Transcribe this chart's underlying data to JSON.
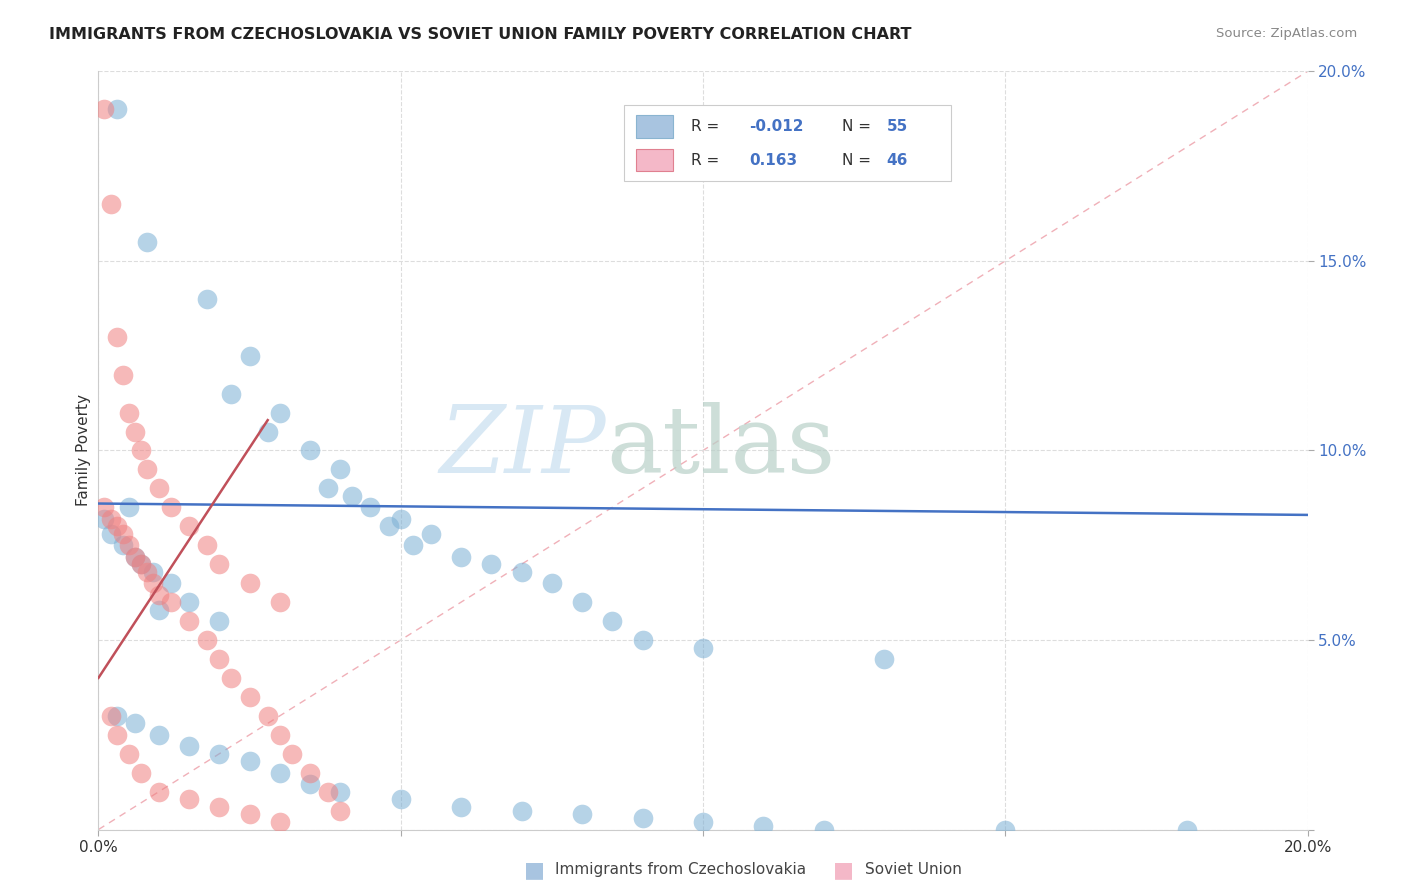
{
  "title": "IMMIGRANTS FROM CZECHOSLOVAKIA VS SOVIET UNION FAMILY POVERTY CORRELATION CHART",
  "source": "Source: ZipAtlas.com",
  "ylabel": "Family Poverty",
  "xlim": [
    0.0,
    0.2
  ],
  "ylim": [
    0.0,
    0.2
  ],
  "R_czechoslovakia": -0.012,
  "N_czechoslovakia": 55,
  "R_soviet": 0.163,
  "N_soviet": 46,
  "color_czechoslovakia": "#7bafd4",
  "color_soviet": "#f08080",
  "color_line_czechoslovakia": "#4472c4",
  "color_line_soviet": "#c0505a",
  "color_diagonal": "#f0b0b8",
  "watermark_zip": "ZIP",
  "watermark_atlas": "atlas",
  "legend_czech_color": "#a8c4e0",
  "legend_soviet_color": "#f4b8c8",
  "czech_x": [
    0.005,
    0.018,
    0.003,
    0.008,
    0.001,
    0.002,
    0.004,
    0.006,
    0.007,
    0.009,
    0.012,
    0.015,
    0.01,
    0.02,
    0.025,
    0.022,
    0.03,
    0.028,
    0.035,
    0.04,
    0.038,
    0.042,
    0.045,
    0.05,
    0.048,
    0.055,
    0.052,
    0.06,
    0.065,
    0.07,
    0.075,
    0.08,
    0.085,
    0.09,
    0.1,
    0.13,
    0.003,
    0.006,
    0.01,
    0.015,
    0.02,
    0.025,
    0.03,
    0.035,
    0.04,
    0.05,
    0.06,
    0.07,
    0.08,
    0.09,
    0.1,
    0.11,
    0.12,
    0.15,
    0.18
  ],
  "czech_y": [
    0.085,
    0.14,
    0.19,
    0.155,
    0.082,
    0.078,
    0.075,
    0.072,
    0.07,
    0.068,
    0.065,
    0.06,
    0.058,
    0.055,
    0.125,
    0.115,
    0.11,
    0.105,
    0.1,
    0.095,
    0.09,
    0.088,
    0.085,
    0.082,
    0.08,
    0.078,
    0.075,
    0.072,
    0.07,
    0.068,
    0.065,
    0.06,
    0.055,
    0.05,
    0.048,
    0.045,
    0.03,
    0.028,
    0.025,
    0.022,
    0.02,
    0.018,
    0.015,
    0.012,
    0.01,
    0.008,
    0.006,
    0.005,
    0.004,
    0.003,
    0.002,
    0.001,
    0.0,
    0.0,
    0.0
  ],
  "soviet_x": [
    0.001,
    0.002,
    0.003,
    0.004,
    0.005,
    0.006,
    0.007,
    0.008,
    0.009,
    0.01,
    0.012,
    0.015,
    0.018,
    0.02,
    0.022,
    0.025,
    0.028,
    0.03,
    0.032,
    0.035,
    0.038,
    0.04,
    0.001,
    0.002,
    0.003,
    0.004,
    0.005,
    0.006,
    0.007,
    0.008,
    0.01,
    0.012,
    0.015,
    0.018,
    0.02,
    0.025,
    0.03,
    0.002,
    0.003,
    0.005,
    0.007,
    0.01,
    0.015,
    0.02,
    0.025,
    0.03
  ],
  "soviet_y": [
    0.085,
    0.082,
    0.08,
    0.078,
    0.075,
    0.072,
    0.07,
    0.068,
    0.065,
    0.062,
    0.06,
    0.055,
    0.05,
    0.045,
    0.04,
    0.035,
    0.03,
    0.025,
    0.02,
    0.015,
    0.01,
    0.005,
    0.19,
    0.165,
    0.13,
    0.12,
    0.11,
    0.105,
    0.1,
    0.095,
    0.09,
    0.085,
    0.08,
    0.075,
    0.07,
    0.065,
    0.06,
    0.03,
    0.025,
    0.02,
    0.015,
    0.01,
    0.008,
    0.006,
    0.004,
    0.002
  ],
  "blue_line_x": [
    0.0,
    0.2
  ],
  "blue_line_y": [
    0.086,
    0.083
  ],
  "red_line_x": [
    0.0,
    0.028
  ],
  "red_line_y": [
    0.04,
    0.108
  ]
}
